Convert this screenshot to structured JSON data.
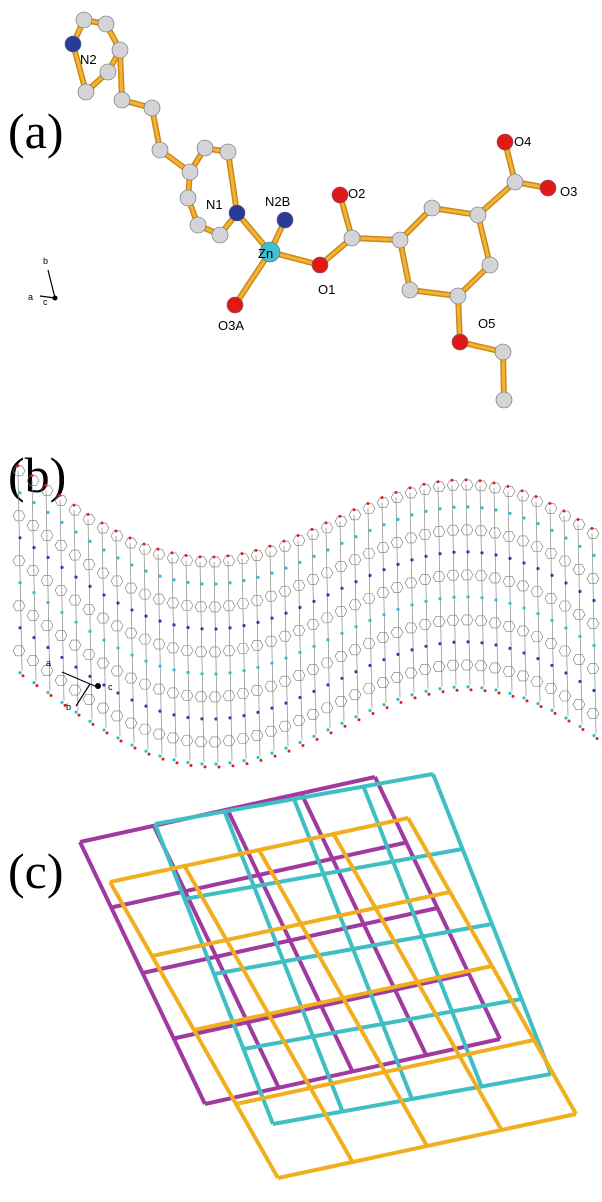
{
  "panel_a": {
    "label": "(a)",
    "atoms": [
      "N2",
      "N1",
      "N2B",
      "Zn",
      "O2",
      "O1",
      "O3A",
      "O4",
      "O3",
      "O5"
    ],
    "axes": [
      "b",
      "a",
      "c"
    ]
  },
  "panel_b": {
    "label": "(b)",
    "axes": [
      "a",
      "b",
      "c"
    ]
  },
  "panel_c": {
    "label": "(c)"
  }
}
